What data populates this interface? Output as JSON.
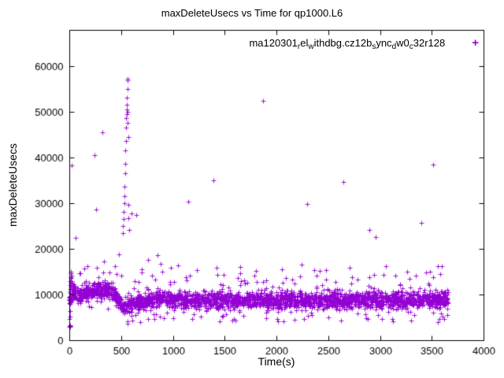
{
  "page": {
    "background": "#ffffff"
  },
  "chart_data": {
    "type": "scatter",
    "title": "maxDeleteUsecs vs Time for qp1000.L6",
    "xlabel": "Time(s)",
    "ylabel": "maxDeleteUsecs",
    "xlim": [
      0,
      4000
    ],
    "ylim": [
      0,
      68000
    ],
    "xticks": [
      0,
      500,
      1000,
      1500,
      2000,
      2500,
      3000,
      3500,
      4000
    ],
    "yticks": [
      0,
      10000,
      20000,
      30000,
      40000,
      50000,
      60000
    ],
    "grid": false,
    "legend_position": "top-inside",
    "axis_color": "#000000",
    "series": [
      {
        "name": "ma120301_rel_withdbg.cz12b_sync_dw0_c32r128",
        "marker": "plus",
        "marker_size": 3,
        "color": "#9400D3",
        "legend_segments": [
          {
            "t": "ma120301"
          },
          {
            "t": "r",
            "sub": true
          },
          {
            "t": "el"
          },
          {
            "t": "w",
            "sub": true
          },
          {
            "t": "ithdbg.cz12b"
          },
          {
            "t": "s",
            "sub": true
          },
          {
            "t": "ync"
          },
          {
            "t": "d",
            "sub": true
          },
          {
            "t": "w0"
          },
          {
            "t": "c",
            "sub": true
          },
          {
            "t": "32r128"
          }
        ],
        "points_extra": {
          "start_cluster": [
            [
              2,
              3000
            ],
            [
              4,
              3050
            ],
            [
              6,
              2950
            ],
            [
              8,
              3150
            ],
            [
              10,
              3250
            ],
            [
              3,
              4600
            ],
            [
              7,
              5200
            ],
            [
              5,
              6300
            ],
            [
              2,
              9400
            ],
            [
              4,
              10300
            ],
            [
              6,
              11200
            ],
            [
              8,
              12100
            ],
            [
              10,
              13000
            ],
            [
              12,
              13800
            ],
            [
              14,
              14600
            ],
            [
              16,
              15100
            ],
            [
              5,
              8600
            ],
            [
              9,
              9700
            ],
            [
              11,
              10700
            ],
            [
              13,
              11800
            ],
            [
              15,
              12600
            ],
            [
              18,
              13600
            ],
            [
              21,
              14200
            ],
            [
              24,
              12900
            ],
            [
              28,
              11900
            ],
            [
              33,
              12400
            ],
            [
              38,
              11000
            ],
            [
              43,
              11700
            ],
            [
              48,
              12200
            ],
            [
              55,
              11400
            ]
          ],
          "outliers_high": [
            [
              20,
              38300
            ],
            [
              60,
              22500
            ],
            [
              240,
              40600
            ],
            [
              262,
              28700
            ],
            [
              320,
              45500
            ],
            [
              516,
              23500
            ],
            [
              520,
              25000
            ],
            [
              524,
              26600
            ],
            [
              527,
              28100
            ],
            [
              529,
              30100
            ],
            [
              531,
              31600
            ],
            [
              534,
              33600
            ],
            [
              537,
              36600
            ],
            [
              540,
              38600
            ],
            [
              543,
              41600
            ],
            [
              546,
              43600
            ],
            [
              549,
              46600
            ],
            [
              551,
              48600
            ],
            [
              552,
              49600
            ],
            [
              554,
              50600
            ],
            [
              556,
              51600
            ],
            [
              558,
              53100
            ],
            [
              559,
              55100
            ],
            [
              560,
              56900
            ],
            [
              562,
              57300
            ],
            [
              564,
              50100
            ],
            [
              566,
              47600
            ],
            [
              568,
              44600
            ],
            [
              571,
              29600
            ],
            [
              574,
              26700
            ],
            [
              577,
              24100
            ],
            [
              600,
              27800
            ],
            [
              645,
              27400
            ],
            [
              1150,
              30300
            ],
            [
              1390,
              35000
            ],
            [
              1870,
              52400
            ],
            [
              2300,
              29900
            ],
            [
              2650,
              34700
            ],
            [
              2900,
              24100
            ],
            [
              2955,
              22600
            ],
            [
              3400,
              25700
            ],
            [
              3515,
              38500
            ]
          ],
          "outliers_mid": [
            [
              480,
              18800
            ],
            [
              700,
              15500
            ],
            [
              760,
              17600
            ],
            [
              850,
              18600
            ],
            [
              885,
              16800
            ],
            [
              980,
              15800
            ],
            [
              1050,
              16400
            ],
            [
              1230,
              15400
            ],
            [
              1420,
              15800
            ],
            [
              1650,
              16100
            ],
            [
              1800,
              15200
            ],
            [
              2055,
              15600
            ],
            [
              2240,
              16600
            ],
            [
              2480,
              15300
            ],
            [
              2705,
              15900
            ],
            [
              3060,
              16300
            ],
            [
              3260,
              15100
            ],
            [
              3445,
              14900
            ],
            [
              3560,
              16200
            ],
            [
              3600,
              16300
            ]
          ],
          "outliers_low": [
            [
              610,
              4300
            ],
            [
              762,
              4600
            ],
            [
              872,
              5100
            ],
            [
              1452,
              4200
            ],
            [
              1605,
              4400
            ],
            [
              1902,
              4800
            ],
            [
              2072,
              4100
            ],
            [
              2502,
              5000
            ],
            [
              2622,
              4300
            ],
            [
              3122,
              4200
            ],
            [
              3302,
              4400
            ],
            [
              3562,
              3900
            ],
            [
              3622,
              4600
            ]
          ]
        },
        "band": {
          "seed": 1337,
          "count": 2600,
          "x_min": 0,
          "x_max": 3660,
          "spread": 2300,
          "tail_prob": 0.035,
          "tail_scale": 4500,
          "low_prob": 0.02,
          "centers": [
            [
              0,
              9000
            ],
            [
              40,
              10600
            ],
            [
              90,
              9900
            ],
            [
              160,
              10300
            ],
            [
              260,
              10900
            ],
            [
              360,
              11200
            ],
            [
              430,
              10600
            ],
            [
              470,
              8600
            ],
            [
              520,
              7200
            ],
            [
              600,
              7900
            ],
            [
              700,
              8400
            ],
            [
              820,
              9100
            ],
            [
              950,
              9300
            ],
            [
              1100,
              8900
            ],
            [
              1300,
              8800
            ],
            [
              1600,
              8700
            ],
            [
              2000,
              8800
            ],
            [
              2400,
              8800
            ],
            [
              2800,
              8900
            ],
            [
              3200,
              8900
            ],
            [
              3660,
              9000
            ]
          ]
        }
      }
    ]
  }
}
